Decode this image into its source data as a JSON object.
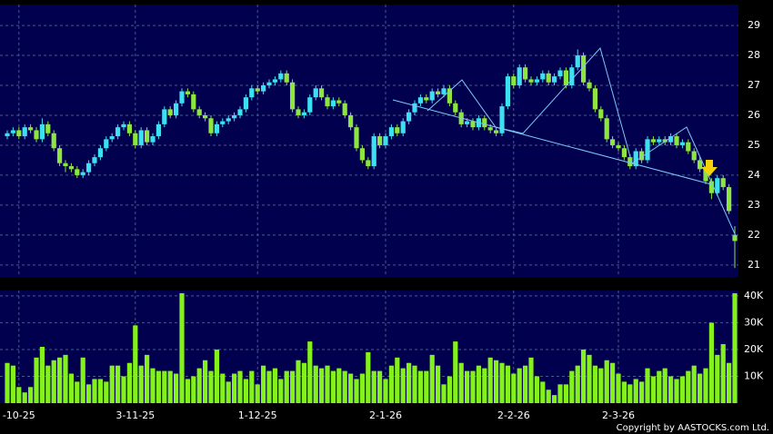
{
  "chart_data": {
    "type": "candlestick",
    "categories": [
      null,
      null,
      "-10-25",
      null,
      null,
      null,
      null,
      null,
      null,
      null,
      null,
      null,
      null,
      null,
      null,
      null,
      null,
      null,
      null,
      null,
      null,
      null,
      "3-11-25",
      null,
      null,
      null,
      null,
      null,
      null,
      null,
      null,
      null,
      null,
      null,
      null,
      null,
      null,
      null,
      null,
      null,
      null,
      null,
      null,
      "1-12-25",
      null,
      null,
      null,
      null,
      null,
      null,
      null,
      null,
      null,
      null,
      null,
      null,
      null,
      null,
      null,
      null,
      null,
      null,
      null,
      null,
      null,
      "2-1-26",
      null,
      null,
      null,
      null,
      null,
      null,
      null,
      null,
      null,
      null,
      null,
      null,
      null,
      null,
      null,
      null,
      null,
      null,
      null,
      null,
      null,
      "2-2-26",
      null,
      null,
      null,
      null,
      null,
      null,
      null,
      null,
      null,
      null,
      null,
      null,
      null,
      null,
      null,
      null,
      null,
      "2-3-26",
      null,
      null,
      null,
      null,
      null,
      null,
      null,
      null,
      null,
      null,
      null,
      null,
      null,
      null,
      null,
      null,
      null,
      null,
      null,
      null
    ],
    "open": [
      25.3,
      25.4,
      25.5,
      25.3,
      25.6,
      25.5,
      25.2,
      25.7,
      25.4,
      24.9,
      24.4,
      24.3,
      24.2,
      24.0,
      24.1,
      24.4,
      24.6,
      24.9,
      25.2,
      25.3,
      25.6,
      25.7,
      25.4,
      25.0,
      25.5,
      25.1,
      25.3,
      25.7,
      26.2,
      26.0,
      26.4,
      26.8,
      26.7,
      26.2,
      26.0,
      25.9,
      25.4,
      25.7,
      25.8,
      25.9,
      26.0,
      26.2,
      26.6,
      26.9,
      26.8,
      27.0,
      27.1,
      27.2,
      27.4,
      27.1,
      26.2,
      26.0,
      26.1,
      26.6,
      26.9,
      26.6,
      26.3,
      26.5,
      26.4,
      26.0,
      25.6,
      24.9,
      24.5,
      24.3,
      25.3,
      25.0,
      25.3,
      25.6,
      25.4,
      25.8,
      26.1,
      26.4,
      26.6,
      26.5,
      26.8,
      26.7,
      26.9,
      26.4,
      26.1,
      25.7,
      25.8,
      25.6,
      25.9,
      25.6,
      25.5,
      25.4,
      26.3,
      27.3,
      27.0,
      27.6,
      27.2,
      27.1,
      27.2,
      27.4,
      27.1,
      27.3,
      27.5,
      27.0,
      27.6,
      28.0,
      27.1,
      26.9,
      26.2,
      25.9,
      25.2,
      25.0,
      24.9,
      24.6,
      24.3,
      24.8,
      24.5,
      25.2,
      25.1,
      25.2,
      25.1,
      25.3,
      25.0,
      25.1,
      24.8,
      24.5,
      24.2,
      23.8,
      23.4,
      23.9,
      23.6,
      22.0
    ],
    "high": [
      25.5,
      25.6,
      25.6,
      25.7,
      25.7,
      25.6,
      25.9,
      25.8,
      25.5,
      25.0,
      24.5,
      24.4,
      24.3,
      24.2,
      24.5,
      24.7,
      25.0,
      25.3,
      25.4,
      25.7,
      25.8,
      25.8,
      25.5,
      25.6,
      25.6,
      25.4,
      25.8,
      26.3,
      26.3,
      26.5,
      26.9,
      26.9,
      26.8,
      26.3,
      26.1,
      26.0,
      25.8,
      25.9,
      26.0,
      26.1,
      26.3,
      26.7,
      27.0,
      27.0,
      27.1,
      27.2,
      27.3,
      27.5,
      27.5,
      27.2,
      26.3,
      26.2,
      26.7,
      27.0,
      27.0,
      26.7,
      26.6,
      26.6,
      26.5,
      26.1,
      25.7,
      25.0,
      24.6,
      25.4,
      25.4,
      25.4,
      25.7,
      25.7,
      25.9,
      26.2,
      26.5,
      26.7,
      26.7,
      26.9,
      26.9,
      27.0,
      27.0,
      26.5,
      26.2,
      25.9,
      25.9,
      26.0,
      26.0,
      25.7,
      25.6,
      26.4,
      27.4,
      27.4,
      27.7,
      27.7,
      27.3,
      27.3,
      27.5,
      27.5,
      27.4,
      27.6,
      27.6,
      27.7,
      28.2,
      28.1,
      27.2,
      27.0,
      26.3,
      26.0,
      25.3,
      25.1,
      25.0,
      24.7,
      24.9,
      24.9,
      25.3,
      25.3,
      25.3,
      25.3,
      25.4,
      25.4,
      25.2,
      25.2,
      24.9,
      24.6,
      24.3,
      23.9,
      24.0,
      24.0,
      23.7,
      22.3
    ],
    "low": [
      25.2,
      25.3,
      25.2,
      25.2,
      25.4,
      25.1,
      25.1,
      25.3,
      24.8,
      24.3,
      24.1,
      24.1,
      23.9,
      23.9,
      24.0,
      24.3,
      24.5,
      24.8,
      25.1,
      25.2,
      25.5,
      25.3,
      24.9,
      24.9,
      25.0,
      25.0,
      25.2,
      25.6,
      25.9,
      25.9,
      26.3,
      26.6,
      26.1,
      25.9,
      25.8,
      25.3,
      25.3,
      25.6,
      25.7,
      25.8,
      25.9,
      26.1,
      26.5,
      26.7,
      26.7,
      26.9,
      27.0,
      27.1,
      27.0,
      26.1,
      25.9,
      25.9,
      26.0,
      26.5,
      26.5,
      26.2,
      26.2,
      26.3,
      25.9,
      25.5,
      24.8,
      24.4,
      24.2,
      24.2,
      24.9,
      24.9,
      25.2,
      25.3,
      25.3,
      25.7,
      26.0,
      26.3,
      26.4,
      26.4,
      26.6,
      26.6,
      26.3,
      26.0,
      25.6,
      25.6,
      25.5,
      25.5,
      25.5,
      25.4,
      25.3,
      25.3,
      26.2,
      26.9,
      26.9,
      27.1,
      27.0,
      27.0,
      27.1,
      27.0,
      27.0,
      27.2,
      26.9,
      26.9,
      27.5,
      27.0,
      26.8,
      26.1,
      25.8,
      25.1,
      24.9,
      24.8,
      24.5,
      24.2,
      24.2,
      24.4,
      24.4,
      25.0,
      25.0,
      25.0,
      25.0,
      24.9,
      24.9,
      24.7,
      24.4,
      24.1,
      23.7,
      23.2,
      23.3,
      23.5,
      22.7,
      20.9
    ],
    "close": [
      25.4,
      25.5,
      25.3,
      25.6,
      25.5,
      25.2,
      25.7,
      25.4,
      24.9,
      24.4,
      24.3,
      24.2,
      24.0,
      24.1,
      24.4,
      24.6,
      24.9,
      25.2,
      25.3,
      25.6,
      25.7,
      25.4,
      25.0,
      25.5,
      25.1,
      25.3,
      25.7,
      26.2,
      26.0,
      26.4,
      26.8,
      26.7,
      26.2,
      26.0,
      25.9,
      25.4,
      25.7,
      25.8,
      25.9,
      26.0,
      26.2,
      26.6,
      26.9,
      26.8,
      27.0,
      27.1,
      27.2,
      27.4,
      27.1,
      26.2,
      26.0,
      26.1,
      26.6,
      26.9,
      26.6,
      26.3,
      26.5,
      26.4,
      26.0,
      25.6,
      24.9,
      24.5,
      24.3,
      25.3,
      25.0,
      25.3,
      25.6,
      25.4,
      25.8,
      26.1,
      26.4,
      26.6,
      26.5,
      26.8,
      26.7,
      26.9,
      26.4,
      26.1,
      25.7,
      25.8,
      25.6,
      25.9,
      25.6,
      25.5,
      25.4,
      26.3,
      27.3,
      27.0,
      27.6,
      27.2,
      27.1,
      27.2,
      27.4,
      27.1,
      27.3,
      27.5,
      27.0,
      27.6,
      28.0,
      27.1,
      26.9,
      26.2,
      25.9,
      25.2,
      25.0,
      24.9,
      24.6,
      24.3,
      24.8,
      24.5,
      25.2,
      25.1,
      25.2,
      25.1,
      25.3,
      25.0,
      25.1,
      24.8,
      24.5,
      24.2,
      23.8,
      23.4,
      23.9,
      23.6,
      22.8,
      21.8
    ],
    "volume": [
      15000,
      14000,
      6000,
      4000,
      6000,
      17000,
      21000,
      14000,
      16000,
      17000,
      18000,
      11000,
      8000,
      17000,
      7000,
      9000,
      9000,
      8000,
      14000,
      14000,
      10000,
      15000,
      29000,
      14000,
      18000,
      13000,
      12000,
      12000,
      12000,
      11000,
      41000,
      9000,
      10000,
      13000,
      16000,
      12000,
      20000,
      11000,
      8000,
      11000,
      12000,
      9000,
      12000,
      7000,
      14000,
      12000,
      13000,
      9000,
      12000,
      12000,
      16000,
      15000,
      23000,
      14000,
      13000,
      14000,
      12000,
      13000,
      12000,
      11000,
      9000,
      11000,
      19000,
      12000,
      12000,
      9000,
      14000,
      17000,
      13000,
      15000,
      14000,
      12000,
      12000,
      18000,
      14000,
      7000,
      10000,
      23000,
      15000,
      12000,
      12000,
      14000,
      13000,
      17000,
      16000,
      15000,
      14000,
      11000,
      13000,
      14000,
      17000,
      10000,
      8000,
      5000,
      3000,
      7000,
      7000,
      12000,
      14000,
      20000,
      18000,
      14000,
      13000,
      16000,
      15000,
      11000,
      8000,
      7000,
      9000,
      8000,
      13000,
      10000,
      12000,
      13000,
      10000,
      9000,
      10000,
      12000,
      14000,
      11000,
      13000,
      30000,
      18000,
      22000,
      15000,
      41000
    ],
    "ylim": [
      20.6,
      29.7
    ],
    "yticks": [
      21,
      22,
      23,
      24,
      25,
      26,
      27,
      28,
      29
    ],
    "volume_ylim": [
      0,
      42000
    ],
    "volume_yticks": [
      {
        "value": 10000,
        "label": "10K"
      },
      {
        "value": 20000,
        "label": "20K"
      },
      {
        "value": 30000,
        "label": "30K"
      },
      {
        "value": 40000,
        "label": "40K"
      }
    ],
    "up_color": "#3ce0f0",
    "down_color": "#8ee53f",
    "volume_color": "#84f01c",
    "grid": true,
    "credit": "Copyright by AASTOCKS.com Ltd."
  }
}
